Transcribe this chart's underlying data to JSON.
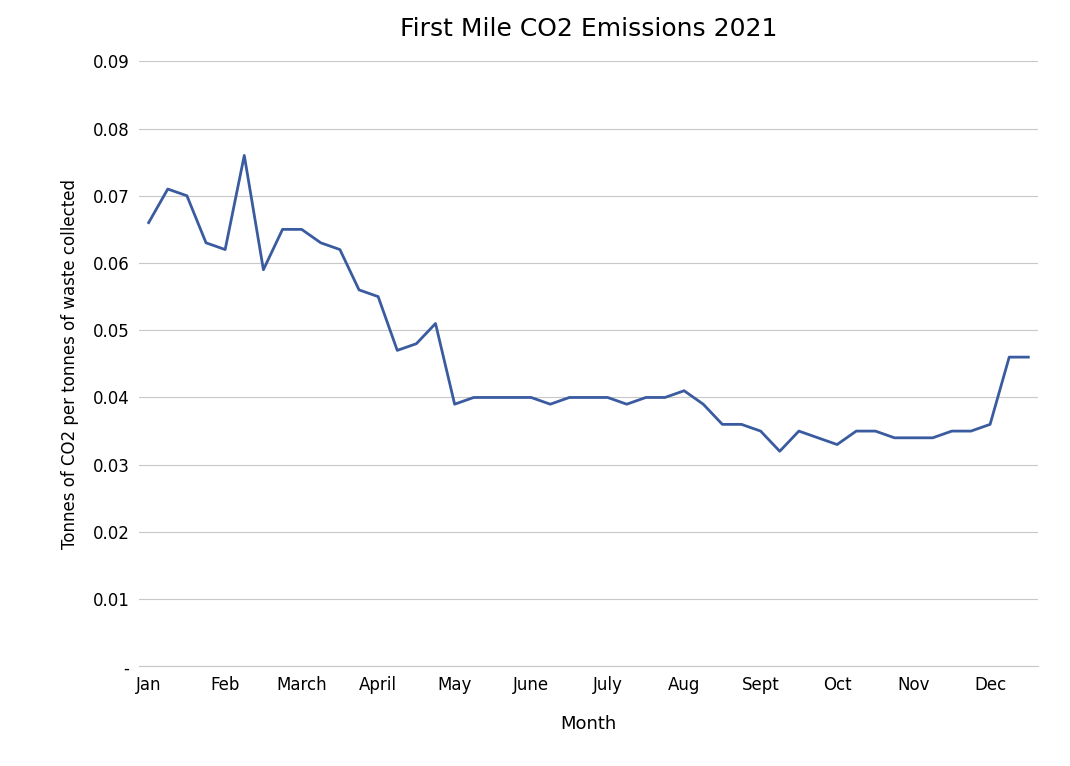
{
  "title": "First Mile CO2 Emissions 2021",
  "xlabel": "Month",
  "ylabel": "Tonnes of CO2 per tonnes of waste collected",
  "line_color": "#3A5BA0",
  "line_width": 2.0,
  "background_color": "#ffffff",
  "ylim": [
    0,
    0.09
  ],
  "yticks": [
    0,
    0.01,
    0.02,
    0.03,
    0.04,
    0.05,
    0.06,
    0.07,
    0.08,
    0.09
  ],
  "ytick_labels": [
    "-",
    "0.01",
    "0.02",
    "0.03",
    "0.04",
    "0.05",
    "0.06",
    "0.07",
    "0.08",
    "0.09"
  ],
  "month_labels": [
    "Jan",
    "Feb",
    "March",
    "April",
    "May",
    "June",
    "July",
    "Aug",
    "Sept",
    "Oct",
    "Nov",
    "Dec"
  ],
  "weekly_values": [
    0.066,
    0.071,
    0.07,
    0.063,
    0.062,
    0.076,
    0.059,
    0.065,
    0.065,
    0.063,
    0.062,
    0.056,
    0.055,
    0.047,
    0.048,
    0.051,
    0.039,
    0.04,
    0.04,
    0.04,
    0.04,
    0.039,
    0.04,
    0.04,
    0.04,
    0.039,
    0.04,
    0.04,
    0.041,
    0.039,
    0.036,
    0.036,
    0.035,
    0.032,
    0.035,
    0.034,
    0.033,
    0.035,
    0.035,
    0.034,
    0.034,
    0.034,
    0.035,
    0.035,
    0.036,
    0.046,
    0.046
  ],
  "month_positions": [
    0,
    4,
    8,
    12,
    16,
    20,
    24,
    28,
    32,
    36,
    40,
    44
  ]
}
